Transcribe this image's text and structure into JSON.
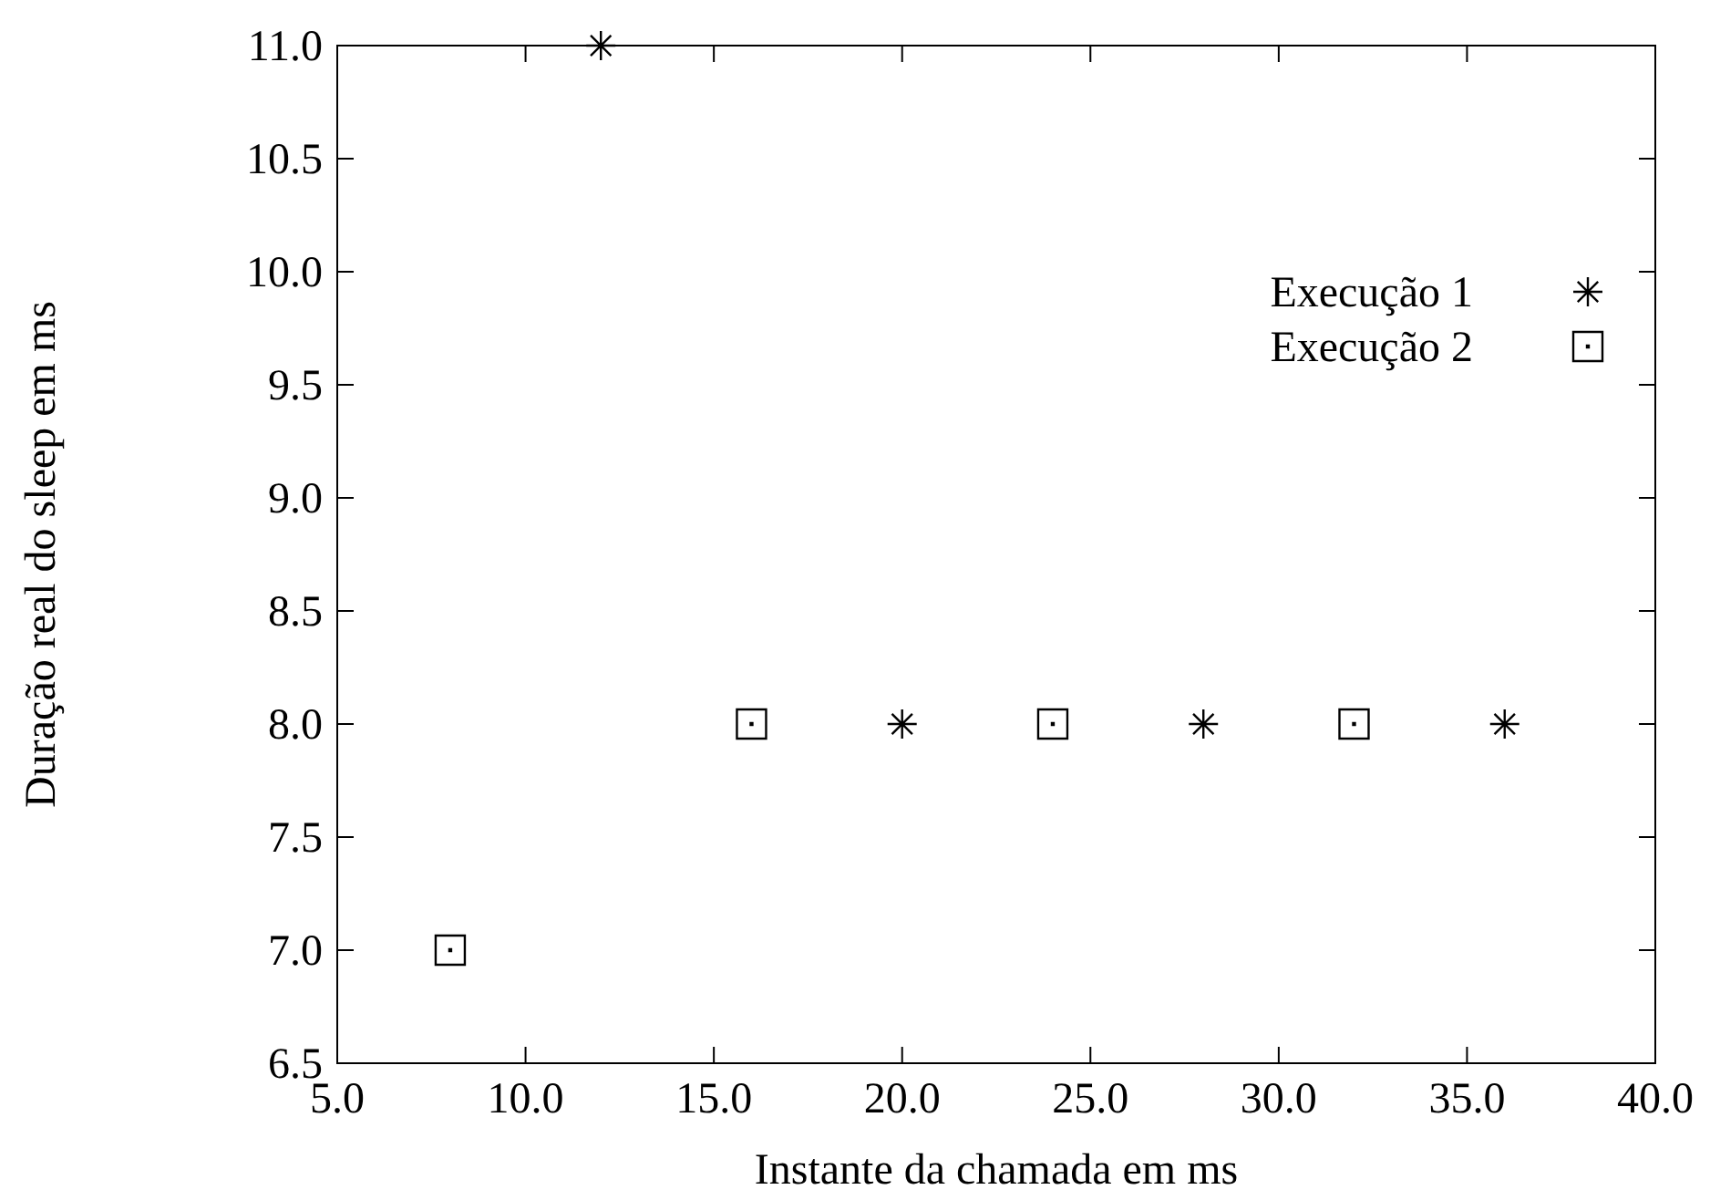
{
  "chart_data": {
    "type": "scatter",
    "xlabel": "Instante da chamada em ms",
    "ylabel": "Duração real do sleep em ms",
    "xlim": [
      5,
      40
    ],
    "ylim": [
      6.5,
      11
    ],
    "xticks": [
      {
        "value": 5,
        "label": "5.0"
      },
      {
        "value": 10,
        "label": "10.0"
      },
      {
        "value": 15,
        "label": "15.0"
      },
      {
        "value": 20,
        "label": "20.0"
      },
      {
        "value": 25,
        "label": "25.0"
      },
      {
        "value": 30,
        "label": "30.0"
      },
      {
        "value": 35,
        "label": "35.0"
      },
      {
        "value": 40,
        "label": "40.0"
      }
    ],
    "yticks": [
      {
        "value": 6.5,
        "label": "6.5"
      },
      {
        "value": 7,
        "label": "7.0"
      },
      {
        "value": 7.5,
        "label": "7.5"
      },
      {
        "value": 8,
        "label": "8.0"
      },
      {
        "value": 8.5,
        "label": "8.5"
      },
      {
        "value": 9,
        "label": "9.0"
      },
      {
        "value": 9.5,
        "label": "9.5"
      },
      {
        "value": 10,
        "label": "10.0"
      },
      {
        "value": 10.5,
        "label": "10.5"
      },
      {
        "value": 11,
        "label": "11.0"
      }
    ],
    "grid": false,
    "legend": "top right",
    "series": [
      {
        "name": "Execução 1",
        "color": "#000000",
        "marker": "cross",
        "x": [
          12,
          20,
          28,
          36
        ],
        "values": [
          11,
          8,
          8,
          8
        ]
      },
      {
        "name": "Execução 2",
        "color": "#000000",
        "marker": "square",
        "x": [
          8,
          16,
          24,
          32
        ],
        "values": [
          7,
          8,
          8,
          8
        ]
      }
    ]
  }
}
